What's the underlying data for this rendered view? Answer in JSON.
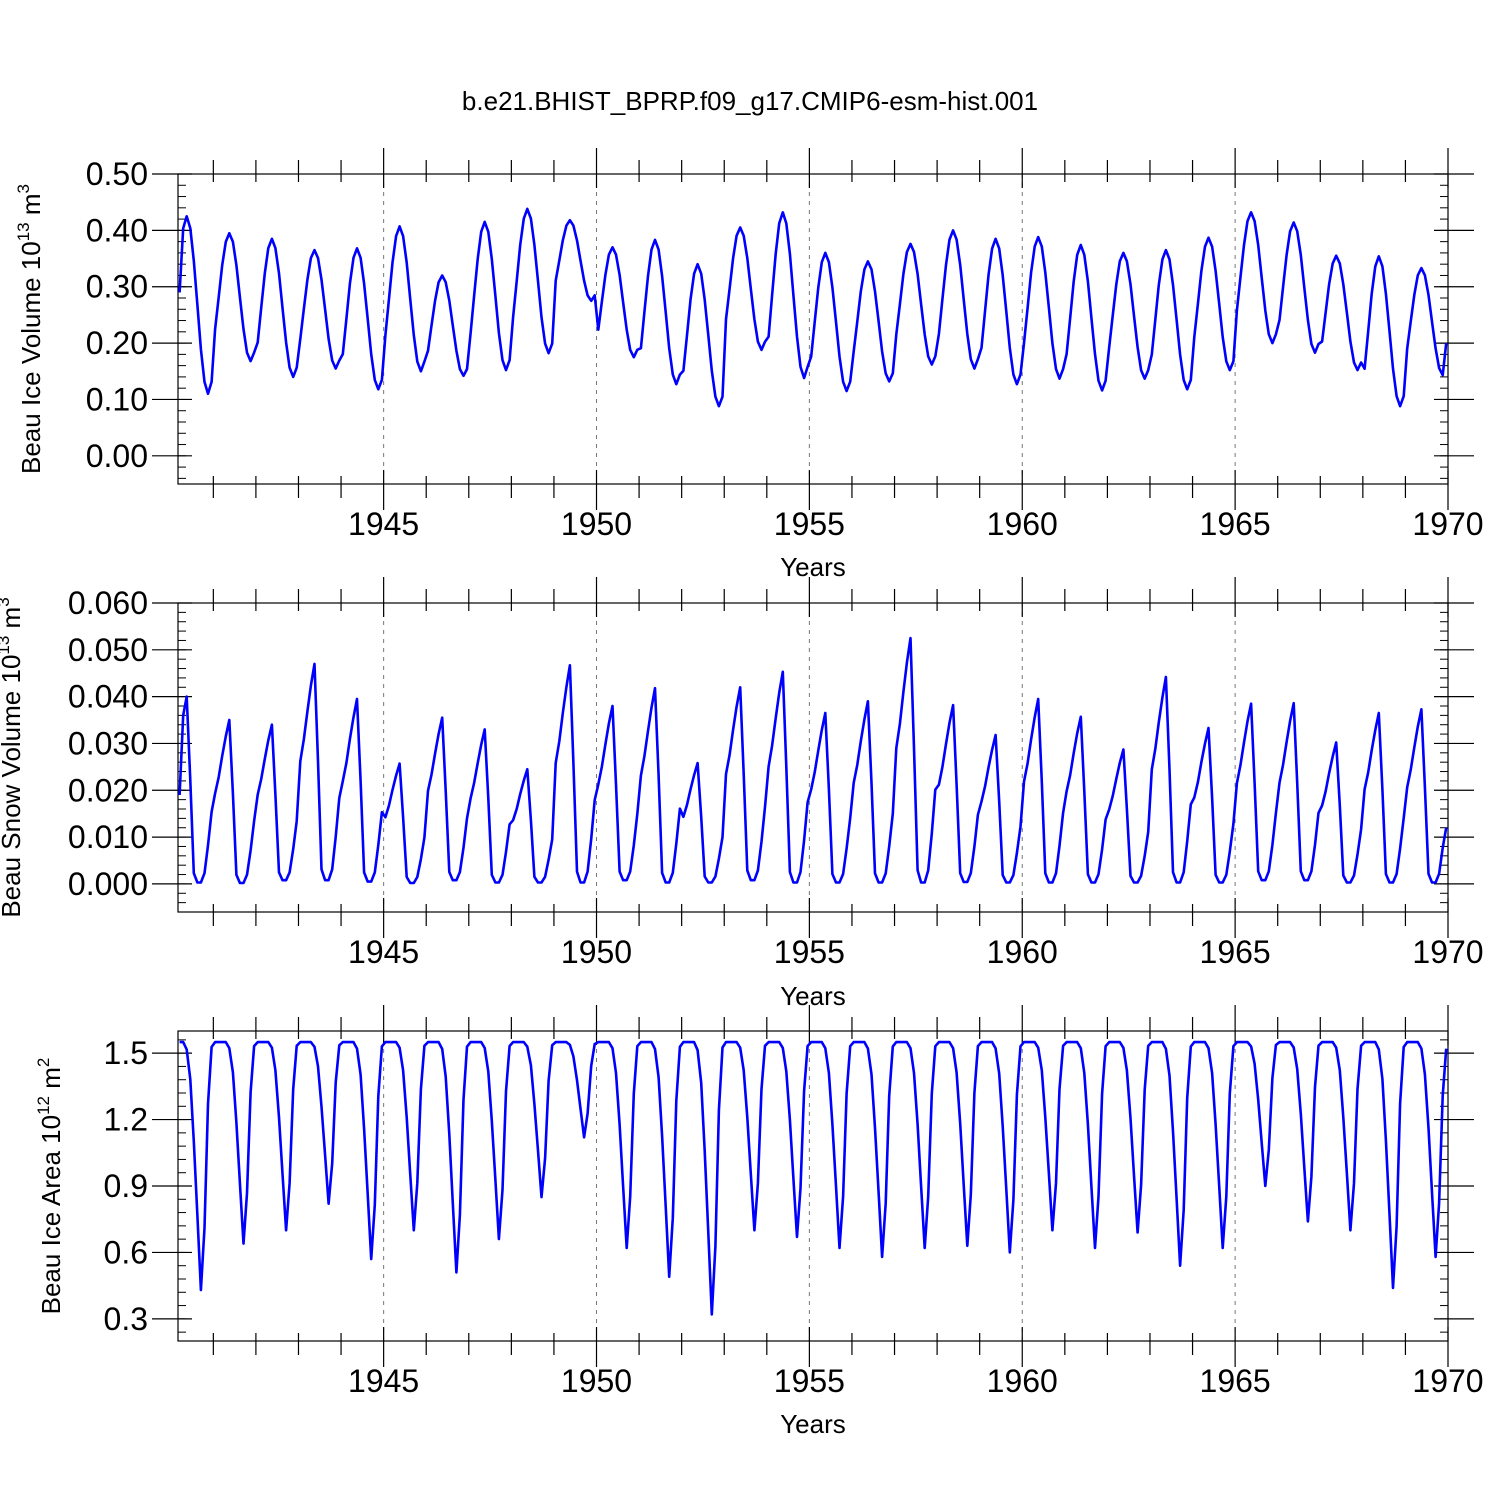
{
  "figure_title": "b.e21.BHIST_BPRP.f09_g17.CMIP6-esm-hist.001",
  "colors": {
    "line": "#0000ff",
    "axes": "#000000",
    "grid": "#777777"
  },
  "chart_data": [
    {
      "type": "line",
      "ylabel_main": "Beau Ice Volume 10",
      "ylabel_exp": "13",
      "ylabel_unit": " m",
      "ylabel_unit_exp": "3",
      "xlabel": "Years",
      "xlim": [
        1940.17,
        1970.0
      ],
      "ylim": [
        -0.05,
        0.5
      ],
      "yticks": [
        0.0,
        0.1,
        0.2,
        0.3,
        0.4,
        0.5
      ],
      "ytick_labels": [
        "0.00",
        "0.10",
        "0.20",
        "0.30",
        "0.40",
        "0.50"
      ],
      "xticks": [
        1945,
        1950,
        1955,
        1960,
        1965,
        1970
      ],
      "xtick_labels": [
        "1945",
        "1950",
        "1955",
        "1960",
        "1965",
        "1970"
      ],
      "gridlines_x": [
        1945,
        1950,
        1955,
        1960,
        1965
      ],
      "series": [
        {
          "name": "Beau Ice Volume",
          "min": [
            0.11,
            0.168,
            0.14,
            0.155,
            0.118,
            0.15,
            0.142,
            0.152,
            0.182,
            0.275,
            0.175,
            0.127,
            0.088,
            0.188,
            0.138,
            0.115,
            0.132,
            0.162,
            0.155,
            0.127,
            0.137,
            0.116,
            0.137,
            0.118,
            0.152,
            0.2,
            0.183,
            0.152,
            0.088,
            0.143
          ],
          "max": [
            0.425,
            0.395,
            0.385,
            0.365,
            0.368,
            0.407,
            0.32,
            0.415,
            0.438,
            0.418,
            0.37,
            0.383,
            0.34,
            0.405,
            0.432,
            0.36,
            0.345,
            0.376,
            0.4,
            0.385,
            0.388,
            0.374,
            0.36,
            0.365,
            0.387,
            0.432,
            0.414,
            0.355,
            0.354,
            0.333
          ],
          "start": 0.29,
          "end": 0.2
        }
      ]
    },
    {
      "type": "line",
      "ylabel_main": "Beau Snow Volume 10",
      "ylabel_exp": "13",
      "ylabel_unit": " m",
      "ylabel_unit_exp": "3",
      "xlabel": "Years",
      "xlim": [
        1940.17,
        1970.0
      ],
      "ylim": [
        -0.006,
        0.06
      ],
      "yticks": [
        0.0,
        0.01,
        0.02,
        0.03,
        0.04,
        0.05,
        0.06
      ],
      "ytick_labels": [
        "0.000",
        "0.010",
        "0.020",
        "0.030",
        "0.040",
        "0.050",
        "0.060"
      ],
      "xticks": [
        1945,
        1950,
        1955,
        1960,
        1965,
        1970
      ],
      "xtick_labels": [
        "1945",
        "1950",
        "1955",
        "1960",
        "1965",
        "1970"
      ],
      "gridlines_x": [
        1945,
        1950,
        1955,
        1960,
        1965
      ],
      "series": [
        {
          "name": "Beau Snow Volume",
          "min": [
            0.0003,
            0.0002,
            0.0008,
            0.0008,
            0.0005,
            0.0002,
            0.0008,
            0.0003,
            0.0003,
            0.0003,
            0.0008,
            0.0003,
            0.0003,
            0.0008,
            0.0003,
            0.0003,
            0.0003,
            0.0003,
            0.0004,
            0.0003,
            0.0003,
            0.0003,
            0.0003,
            0.0003,
            0.0003,
            0.0008,
            0.0008,
            0.0003,
            0.0003,
            0.0003
          ],
          "max": [
            0.04,
            0.035,
            0.034,
            0.047,
            0.0395,
            0.0257,
            0.0355,
            0.033,
            0.0245,
            0.0467,
            0.038,
            0.0418,
            0.0258,
            0.042,
            0.0453,
            0.0365,
            0.039,
            0.0525,
            0.0382,
            0.0318,
            0.0395,
            0.0357,
            0.0287,
            0.0442,
            0.0333,
            0.0385,
            0.0386,
            0.0302,
            0.0365,
            0.0373
          ],
          "start": 0.019,
          "end": 0.012
        }
      ]
    },
    {
      "type": "line",
      "ylabel_main": "Beau Ice Area 10",
      "ylabel_exp": "12",
      "ylabel_unit": " m",
      "ylabel_unit_exp": "2",
      "xlabel": "Years",
      "xlim": [
        1940.17,
        1970.0
      ],
      "ylim": [
        0.2,
        1.6
      ],
      "yticks": [
        0.3,
        0.6,
        0.9,
        1.2,
        1.5
      ],
      "ytick_labels": [
        "0.3",
        "0.6",
        "0.9",
        "1.2",
        "1.5"
      ],
      "xticks": [
        1945,
        1950,
        1955,
        1960,
        1965,
        1970
      ],
      "xtick_labels": [
        "1945",
        "1950",
        "1955",
        "1960",
        "1965",
        "1970"
      ],
      "gridlines_x": [
        1945,
        1950,
        1955,
        1960,
        1965
      ],
      "series": [
        {
          "name": "Beau Ice Area",
          "min": [
            0.43,
            0.64,
            0.7,
            0.82,
            0.57,
            0.7,
            0.51,
            0.66,
            0.85,
            1.12,
            0.62,
            0.49,
            0.32,
            0.7,
            0.67,
            0.62,
            0.58,
            0.62,
            0.63,
            0.6,
            0.7,
            0.62,
            0.69,
            0.54,
            0.62,
            0.9,
            0.74,
            0.7,
            0.44,
            0.58
          ],
          "max": [
            1.55,
            1.55,
            1.55,
            1.55,
            1.55,
            1.55,
            1.55,
            1.55,
            1.55,
            1.55,
            1.55,
            1.55,
            1.55,
            1.55,
            1.55,
            1.55,
            1.55,
            1.55,
            1.55,
            1.55,
            1.55,
            1.55,
            1.55,
            1.55,
            1.55,
            1.55,
            1.55,
            1.55,
            1.55,
            1.55
          ],
          "start": 1.55,
          "end": 1.52
        }
      ]
    }
  ]
}
